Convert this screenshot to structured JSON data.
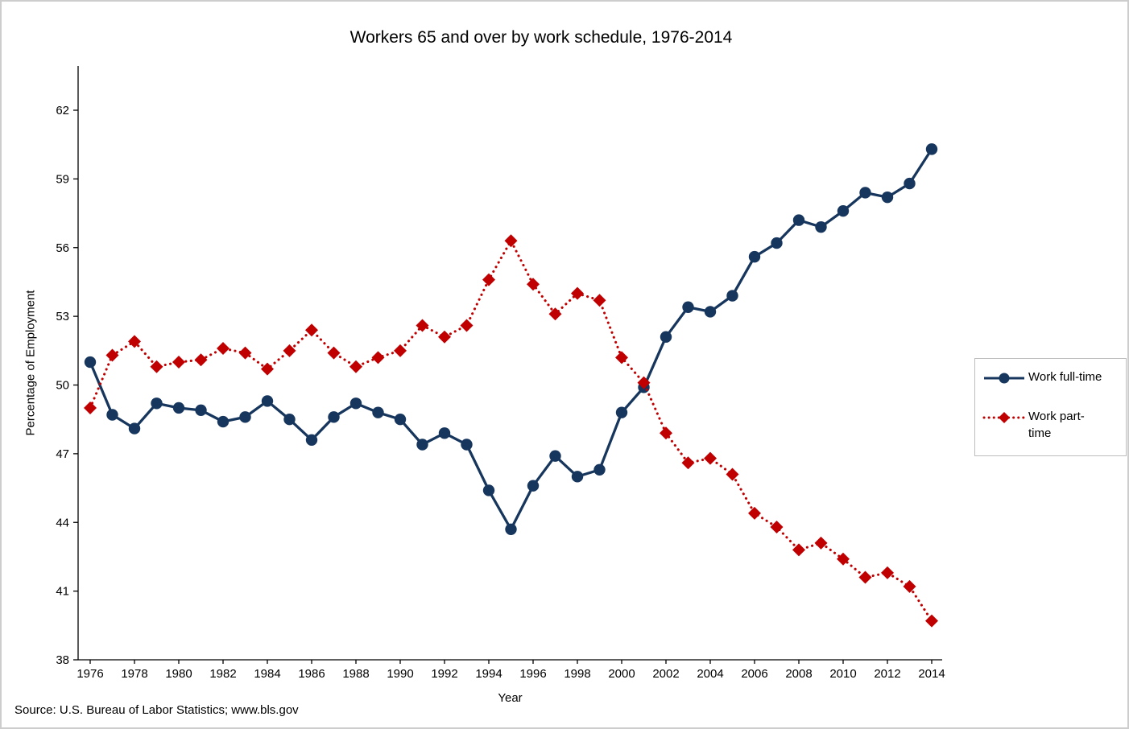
{
  "source_note": "Source: U.S. Bureau of Labor Statistics; www.bls.gov",
  "chart_data": {
    "type": "line",
    "title": "Workers 65 and over by work schedule, 1976-2014",
    "xlabel": "Year",
    "ylabel": "Percentage of Employment",
    "grid": false,
    "legend_position": "right",
    "ylim": [
      38,
      64
    ],
    "y_ticks": [
      38,
      41,
      44,
      47,
      50,
      53,
      56,
      59,
      62
    ],
    "x": [
      1976,
      1977,
      1978,
      1979,
      1980,
      1981,
      1982,
      1983,
      1984,
      1985,
      1986,
      1987,
      1988,
      1989,
      1990,
      1991,
      1992,
      1993,
      1994,
      1995,
      1996,
      1997,
      1998,
      1999,
      2000,
      2001,
      2002,
      2003,
      2004,
      2005,
      2006,
      2007,
      2008,
      2009,
      2010,
      2011,
      2012,
      2013,
      2014
    ],
    "x_tick_labels": [
      "1976",
      "1978",
      "1980",
      "1982",
      "1984",
      "1986",
      "1988",
      "1990",
      "1992",
      "1994",
      "1996",
      "1998",
      "2000",
      "2002",
      "2004",
      "2006",
      "2008",
      "2010",
      "2012",
      "2014"
    ],
    "series": [
      {
        "name": "Work full-time",
        "color": "#17365D",
        "marker": "circle",
        "line_style": "solid",
        "values": [
          51.0,
          48.7,
          48.1,
          49.2,
          49.0,
          48.9,
          48.4,
          48.6,
          49.3,
          48.5,
          47.6,
          48.6,
          49.2,
          48.8,
          48.5,
          47.4,
          47.9,
          47.4,
          45.4,
          43.7,
          45.6,
          46.9,
          46.0,
          46.3,
          48.8,
          49.9,
          52.1,
          53.4,
          53.2,
          53.9,
          55.6,
          56.2,
          57.2,
          56.9,
          57.6,
          58.4,
          58.2,
          58.8,
          60.3
        ]
      },
      {
        "name": "Work part-time",
        "color": "#C00000",
        "marker": "diamond",
        "line_style": "dotted",
        "values": [
          49.0,
          51.3,
          51.9,
          50.8,
          51.0,
          51.1,
          51.6,
          51.4,
          50.7,
          51.5,
          52.4,
          51.4,
          50.8,
          51.2,
          51.5,
          52.6,
          52.1,
          52.6,
          54.6,
          56.3,
          54.4,
          53.1,
          54.0,
          53.7,
          51.2,
          50.1,
          47.9,
          46.6,
          46.8,
          46.1,
          44.4,
          43.8,
          42.8,
          43.1,
          42.4,
          41.6,
          41.8,
          41.2,
          39.7
        ]
      }
    ]
  }
}
